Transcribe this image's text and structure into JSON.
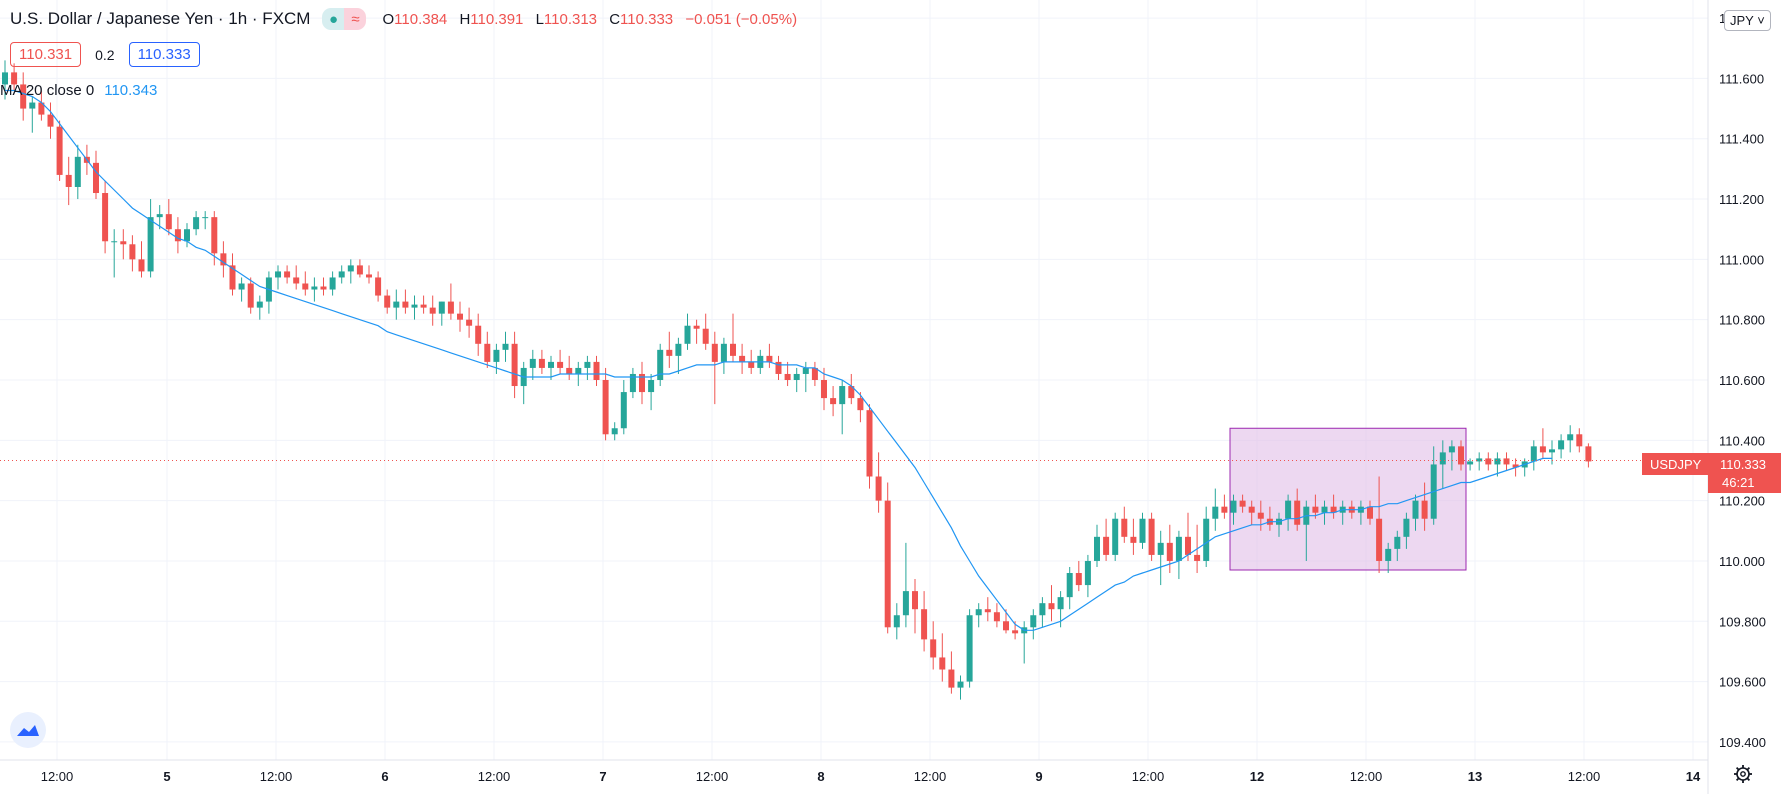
{
  "header": {
    "symbol_title": "U.S. Dollar / Japanese Yen · 1h · FXCM",
    "ohlc": {
      "o_label": "O",
      "o": "110.384",
      "h_label": "H",
      "h": "110.391",
      "l_label": "L",
      "l": "110.313",
      "c_label": "C",
      "c": "110.333",
      "change": "−0.051 (−0.05%)"
    },
    "bid": "110.331",
    "spread": "0.2",
    "ask": "110.333"
  },
  "indicator": {
    "label": "MA 20 close 0",
    "value": "110.343"
  },
  "currency_button": "JPY ˅",
  "price_tag": {
    "symbol": "USDJPY",
    "price": "110.333",
    "countdown": "46:21"
  },
  "colors": {
    "up": "#26a69a",
    "down": "#ef5350",
    "ma": "#2196f3",
    "box": "#9c27b0"
  },
  "icons": {
    "logo": "tradingview-cloud-icon",
    "settings": "gear-icon"
  },
  "chart_data": {
    "type": "candlestick",
    "y_axis": {
      "min": 109.34,
      "max": 111.86,
      "ticks": [
        "111.800",
        "111.600",
        "111.400",
        "111.200",
        "111.000",
        "110.800",
        "110.600",
        "110.400",
        "110.200",
        "110.000",
        "109.800",
        "109.600",
        "109.400"
      ]
    },
    "x_labels": [
      "12:00",
      "5",
      "12:00",
      "6",
      "12:00",
      "7",
      "12:00",
      "8",
      "12:00",
      "9",
      "12:00",
      "12",
      "12:00",
      "13",
      "12:00",
      "14"
    ],
    "series": [
      {
        "name": "MA 20 close 0",
        "type": "line",
        "values": []
      }
    ],
    "candles": [
      [
        111.58,
        111.66,
        111.53,
        111.62
      ],
      [
        111.62,
        111.65,
        111.56,
        111.58
      ],
      [
        111.58,
        111.62,
        111.46,
        111.5
      ],
      [
        111.5,
        111.54,
        111.42,
        111.52
      ],
      [
        111.52,
        111.56,
        111.46,
        111.48
      ],
      [
        111.48,
        111.52,
        111.4,
        111.44
      ],
      [
        111.44,
        111.46,
        111.26,
        111.28
      ],
      [
        111.28,
        111.34,
        111.18,
        111.24
      ],
      [
        111.24,
        111.38,
        111.2,
        111.34
      ],
      [
        111.34,
        111.38,
        111.28,
        111.32
      ],
      [
        111.32,
        111.36,
        111.2,
        111.22
      ],
      [
        111.22,
        111.26,
        111.02,
        111.06
      ],
      [
        111.06,
        111.1,
        110.94,
        111.06
      ],
      [
        111.06,
        111.1,
        111.0,
        111.05
      ],
      [
        111.05,
        111.08,
        110.96,
        111.0
      ],
      [
        111.0,
        111.06,
        110.94,
        110.96
      ],
      [
        110.96,
        111.2,
        110.94,
        111.14
      ],
      [
        111.14,
        111.18,
        111.1,
        111.15
      ],
      [
        111.15,
        111.2,
        111.08,
        111.1
      ],
      [
        111.1,
        111.14,
        111.02,
        111.06
      ],
      [
        111.06,
        111.12,
        111.04,
        111.1
      ],
      [
        111.1,
        111.16,
        111.08,
        111.14
      ],
      [
        111.14,
        111.16,
        111.1,
        111.14
      ],
      [
        111.14,
        111.16,
        110.98,
        111.02
      ],
      [
        111.02,
        111.06,
        110.94,
        110.98
      ],
      [
        110.98,
        111.02,
        110.88,
        110.9
      ],
      [
        110.9,
        110.94,
        110.86,
        110.92
      ],
      [
        110.92,
        110.94,
        110.82,
        110.84
      ],
      [
        110.84,
        110.88,
        110.8,
        110.86
      ],
      [
        110.86,
        110.96,
        110.82,
        110.94
      ],
      [
        110.94,
        110.98,
        110.9,
        110.96
      ],
      [
        110.96,
        110.98,
        110.92,
        110.94
      ],
      [
        110.94,
        110.98,
        110.9,
        110.92
      ],
      [
        110.92,
        110.96,
        110.88,
        110.9
      ],
      [
        110.9,
        110.94,
        110.86,
        110.91
      ],
      [
        110.91,
        110.94,
        110.88,
        110.9
      ],
      [
        110.9,
        110.96,
        110.88,
        110.94
      ],
      [
        110.94,
        110.98,
        110.92,
        110.96
      ],
      [
        110.96,
        111.0,
        110.92,
        110.98
      ],
      [
        110.98,
        111.0,
        110.94,
        110.95
      ],
      [
        110.95,
        110.98,
        110.92,
        110.94
      ],
      [
        110.94,
        110.96,
        110.86,
        110.88
      ],
      [
        110.88,
        110.9,
        110.82,
        110.84
      ],
      [
        110.84,
        110.9,
        110.8,
        110.86
      ],
      [
        110.86,
        110.9,
        110.82,
        110.84
      ],
      [
        110.84,
        110.88,
        110.8,
        110.85
      ],
      [
        110.85,
        110.88,
        110.82,
        110.84
      ],
      [
        110.84,
        110.88,
        110.78,
        110.82
      ],
      [
        110.82,
        110.86,
        110.78,
        110.86
      ],
      [
        110.86,
        110.92,
        110.8,
        110.82
      ],
      [
        110.82,
        110.86,
        110.76,
        110.8
      ],
      [
        110.8,
        110.84,
        110.74,
        110.78
      ],
      [
        110.78,
        110.82,
        110.68,
        110.72
      ],
      [
        110.72,
        110.76,
        110.64,
        110.66
      ],
      [
        110.66,
        110.72,
        110.62,
        110.7
      ],
      [
        110.7,
        110.76,
        110.66,
        110.72
      ],
      [
        110.72,
        110.76,
        110.54,
        110.58
      ],
      [
        110.58,
        110.66,
        110.52,
        110.64
      ],
      [
        110.64,
        110.7,
        110.6,
        110.67
      ],
      [
        110.67,
        110.7,
        110.62,
        110.64
      ],
      [
        110.64,
        110.68,
        110.6,
        110.66
      ],
      [
        110.66,
        110.7,
        110.62,
        110.64
      ],
      [
        110.64,
        110.68,
        110.6,
        110.62
      ],
      [
        110.62,
        110.66,
        110.58,
        110.64
      ],
      [
        110.64,
        110.68,
        110.6,
        110.66
      ],
      [
        110.66,
        110.68,
        110.58,
        110.6
      ],
      [
        110.6,
        110.64,
        110.4,
        110.42
      ],
      [
        110.42,
        110.46,
        110.4,
        110.44
      ],
      [
        110.44,
        110.6,
        110.42,
        110.56
      ],
      [
        110.56,
        110.64,
        110.54,
        110.62
      ],
      [
        110.62,
        110.66,
        110.52,
        110.56
      ],
      [
        110.56,
        110.62,
        110.5,
        110.6
      ],
      [
        110.6,
        110.72,
        110.58,
        110.7
      ],
      [
        110.7,
        110.76,
        110.64,
        110.68
      ],
      [
        110.68,
        110.74,
        110.62,
        110.72
      ],
      [
        110.72,
        110.82,
        110.7,
        110.78
      ],
      [
        110.78,
        110.8,
        110.72,
        110.77
      ],
      [
        110.77,
        110.82,
        110.7,
        110.72
      ],
      [
        110.72,
        110.76,
        110.52,
        110.66
      ],
      [
        110.66,
        110.74,
        110.62,
        110.72
      ],
      [
        110.72,
        110.82,
        110.66,
        110.68
      ],
      [
        110.68,
        110.72,
        110.62,
        110.66
      ],
      [
        110.66,
        110.7,
        110.62,
        110.64
      ],
      [
        110.64,
        110.7,
        110.62,
        110.68
      ],
      [
        110.68,
        110.72,
        110.64,
        110.66
      ],
      [
        110.66,
        110.68,
        110.6,
        110.62
      ],
      [
        110.62,
        110.66,
        110.58,
        110.6
      ],
      [
        110.6,
        110.64,
        110.56,
        110.62
      ],
      [
        110.62,
        110.66,
        110.56,
        110.64
      ],
      [
        110.64,
        110.66,
        110.58,
        110.6
      ],
      [
        110.6,
        110.64,
        110.5,
        110.54
      ],
      [
        110.54,
        110.58,
        110.48,
        110.52
      ],
      [
        110.52,
        110.6,
        110.42,
        110.58
      ],
      [
        110.58,
        110.62,
        110.52,
        110.54
      ],
      [
        110.54,
        110.56,
        110.46,
        110.5
      ],
      [
        110.5,
        110.52,
        110.24,
        110.28
      ],
      [
        110.28,
        110.36,
        110.16,
        110.2
      ],
      [
        110.2,
        110.26,
        109.76,
        109.78
      ],
      [
        109.78,
        109.86,
        109.74,
        109.82
      ],
      [
        109.82,
        110.06,
        109.78,
        109.9
      ],
      [
        109.9,
        109.94,
        109.76,
        109.84
      ],
      [
        109.84,
        109.9,
        109.7,
        109.74
      ],
      [
        109.74,
        109.8,
        109.64,
        109.68
      ],
      [
        109.68,
        109.76,
        109.6,
        109.64
      ],
      [
        109.64,
        109.7,
        109.56,
        109.58
      ],
      [
        109.58,
        109.62,
        109.54,
        109.6
      ],
      [
        109.6,
        109.84,
        109.58,
        109.82
      ],
      [
        109.82,
        109.86,
        109.78,
        109.84
      ],
      [
        109.84,
        109.88,
        109.8,
        109.83
      ],
      [
        109.83,
        109.86,
        109.78,
        109.8
      ],
      [
        109.8,
        109.84,
        109.76,
        109.77
      ],
      [
        109.77,
        109.8,
        109.74,
        109.76
      ],
      [
        109.76,
        109.8,
        109.66,
        109.78
      ],
      [
        109.78,
        109.84,
        109.74,
        109.82
      ],
      [
        109.82,
        109.88,
        109.78,
        109.86
      ],
      [
        109.86,
        109.92,
        109.8,
        109.84
      ],
      [
        109.84,
        109.9,
        109.78,
        109.88
      ],
      [
        109.88,
        109.98,
        109.84,
        109.96
      ],
      [
        109.96,
        110.0,
        109.9,
        109.92
      ],
      [
        109.92,
        110.02,
        109.88,
        110.0
      ],
      [
        110.0,
        110.12,
        109.98,
        110.08
      ],
      [
        110.08,
        110.14,
        110.0,
        110.02
      ],
      [
        110.02,
        110.16,
        110.0,
        110.14
      ],
      [
        110.14,
        110.18,
        110.06,
        110.08
      ],
      [
        110.08,
        110.14,
        110.02,
        110.06
      ],
      [
        110.06,
        110.16,
        110.04,
        110.14
      ],
      [
        110.14,
        110.16,
        110.0,
        110.02
      ],
      [
        110.02,
        110.1,
        109.92,
        110.06
      ],
      [
        110.06,
        110.12,
        109.96,
        110.0
      ],
      [
        110.0,
        110.1,
        109.94,
        110.08
      ],
      [
        110.08,
        110.16,
        110.0,
        110.02
      ],
      [
        110.02,
        110.12,
        109.96,
        110.0
      ],
      [
        110.0,
        110.18,
        109.98,
        110.14
      ],
      [
        110.14,
        110.24,
        110.1,
        110.18
      ],
      [
        110.18,
        110.22,
        110.14,
        110.16
      ],
      [
        110.16,
        110.22,
        110.12,
        110.2
      ],
      [
        110.2,
        110.22,
        110.16,
        110.18
      ],
      [
        110.18,
        110.2,
        110.12,
        110.16
      ],
      [
        110.16,
        110.2,
        110.1,
        110.14
      ],
      [
        110.14,
        110.18,
        110.1,
        110.12
      ],
      [
        110.12,
        110.16,
        110.08,
        110.14
      ],
      [
        110.14,
        110.22,
        110.1,
        110.2
      ],
      [
        110.2,
        110.24,
        110.1,
        110.12
      ],
      [
        110.12,
        110.2,
        110.0,
        110.18
      ],
      [
        110.18,
        110.22,
        110.14,
        110.16
      ],
      [
        110.16,
        110.2,
        110.12,
        110.18
      ],
      [
        110.18,
        110.22,
        110.14,
        110.16
      ],
      [
        110.16,
        110.2,
        110.12,
        110.18
      ],
      [
        110.18,
        110.2,
        110.14,
        110.16
      ],
      [
        110.16,
        110.2,
        110.12,
        110.18
      ],
      [
        110.18,
        110.2,
        110.12,
        110.14
      ],
      [
        110.14,
        110.28,
        109.96,
        110.0
      ],
      [
        110.0,
        110.06,
        109.96,
        110.04
      ],
      [
        110.04,
        110.1,
        110.0,
        110.08
      ],
      [
        110.08,
        110.16,
        110.04,
        110.14
      ],
      [
        110.14,
        110.22,
        110.1,
        110.2
      ],
      [
        110.2,
        110.26,
        110.1,
        110.14
      ],
      [
        110.14,
        110.38,
        110.12,
        110.32
      ],
      [
        110.32,
        110.4,
        110.24,
        110.36
      ],
      [
        110.36,
        110.4,
        110.3,
        110.38
      ],
      [
        110.38,
        110.4,
        110.3,
        110.32
      ],
      [
        110.32,
        110.34,
        110.3,
        110.33
      ],
      [
        110.33,
        110.36,
        110.3,
        110.34
      ],
      [
        110.34,
        110.36,
        110.3,
        110.32
      ],
      [
        110.32,
        110.36,
        110.28,
        110.34
      ],
      [
        110.34,
        110.36,
        110.3,
        110.32
      ],
      [
        110.32,
        110.34,
        110.28,
        110.31
      ],
      [
        110.31,
        110.34,
        110.28,
        110.33
      ],
      [
        110.33,
        110.4,
        110.3,
        110.38
      ],
      [
        110.38,
        110.44,
        110.34,
        110.36
      ],
      [
        110.36,
        110.4,
        110.32,
        110.37
      ],
      [
        110.37,
        110.42,
        110.34,
        110.4
      ],
      [
        110.4,
        110.45,
        110.36,
        110.42
      ],
      [
        110.42,
        110.44,
        110.36,
        110.38
      ],
      [
        110.38,
        110.39,
        110.31,
        110.33
      ]
    ],
    "ma": [
      111.56,
      111.56,
      111.55,
      111.54,
      111.52,
      111.49,
      111.45,
      111.41,
      111.37,
      111.33,
      111.29,
      111.26,
      111.23,
      111.2,
      111.17,
      111.15,
      111.13,
      111.11,
      111.09,
      111.07,
      111.06,
      111.04,
      111.03,
      111.01,
      110.99,
      110.97,
      110.95,
      110.93,
      110.91,
      110.9,
      110.89,
      110.88,
      110.87,
      110.86,
      110.85,
      110.84,
      110.83,
      110.82,
      110.81,
      110.8,
      110.79,
      110.78,
      110.76,
      110.75,
      110.74,
      110.73,
      110.72,
      110.71,
      110.7,
      110.69,
      110.68,
      110.67,
      110.66,
      110.65,
      110.64,
      110.63,
      110.62,
      110.61,
      110.61,
      110.61,
      110.61,
      110.62,
      110.62,
      110.62,
      110.62,
      110.62,
      110.62,
      110.61,
      110.61,
      110.61,
      110.61,
      110.61,
      110.62,
      110.62,
      110.63,
      110.64,
      110.65,
      110.65,
      110.65,
      110.66,
      110.66,
      110.66,
      110.66,
      110.66,
      110.66,
      110.65,
      110.65,
      110.65,
      110.64,
      110.64,
      110.62,
      110.61,
      110.6,
      110.58,
      110.55,
      110.51,
      110.47,
      110.43,
      110.39,
      110.35,
      110.31,
      110.26,
      110.21,
      110.16,
      110.11,
      110.05,
      110.0,
      109.95,
      109.91,
      109.87,
      109.83,
      109.79,
      109.77,
      109.77,
      109.78,
      109.79,
      109.8,
      109.82,
      109.84,
      109.86,
      109.88,
      109.9,
      109.92,
      109.93,
      109.95,
      109.96,
      109.97,
      109.98,
      109.99,
      110.0,
      110.02,
      110.04,
      110.06,
      110.08,
      110.09,
      110.1,
      110.11,
      110.12,
      110.12,
      110.13,
      110.13,
      110.14,
      110.14,
      110.15,
      110.15,
      110.16,
      110.16,
      110.17,
      110.17,
      110.17,
      110.18,
      110.18,
      110.19,
      110.19,
      110.2,
      110.21,
      110.22,
      110.23,
      110.24,
      110.25,
      110.26,
      110.26,
      110.27,
      110.28,
      110.29,
      110.3,
      110.31,
      110.32,
      110.33,
      110.34,
      110.34
    ],
    "highlight_box": {
      "y_top": 110.44,
      "y_bottom": 109.97
    }
  }
}
